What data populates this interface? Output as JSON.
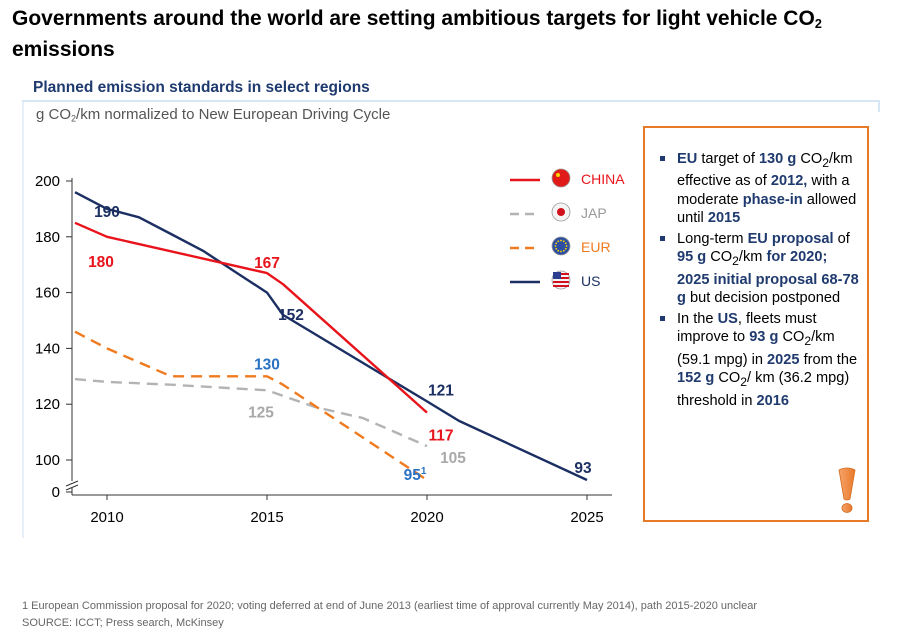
{
  "header": {
    "title_part1": "Governments around the world are setting ambitious targets for light vehicle CO",
    "title_sub": "2",
    "title_part2": " emissions",
    "subtitle": "Planned emission standards in select regions",
    "unit_part1": "g CO",
    "unit_sub": "2",
    "unit_part2": "/km normalized to New European Driving Cycle"
  },
  "chart_data": {
    "type": "line",
    "title": "Planned emission standards in select regions",
    "ylabel": "g CO2/km normalized to New European Driving Cycle",
    "xlabel": "",
    "x_ticks": [
      "2010",
      "2015",
      "2020",
      "2025"
    ],
    "y_ticks": [
      "0",
      "100",
      "120",
      "140",
      "160",
      "180",
      "200"
    ],
    "y_break": true,
    "xlim": [
      2009,
      2025.5
    ],
    "ylim": [
      95,
      200
    ],
    "legend_placement": "top-right",
    "series": [
      {
        "name": "CHINA",
        "color": "#e8141b",
        "dash": "solid",
        "flag": "china-flag-icon",
        "points": [
          [
            2009,
            185
          ],
          [
            2010,
            180
          ],
          [
            2015,
            167
          ],
          [
            2015.5,
            163
          ],
          [
            2020,
            117
          ]
        ],
        "labels": [
          {
            "text": "180",
            "x": 2010,
            "y": 180
          },
          {
            "text": "167",
            "x": 2015,
            "y": 167
          },
          {
            "text": "117",
            "x": 2020,
            "y": 117
          }
        ]
      },
      {
        "name": "JAP",
        "color": "#b3b3b3",
        "dash": "dashed",
        "flag": "japan-flag-icon",
        "points": [
          [
            2009,
            129
          ],
          [
            2010,
            128
          ],
          [
            2012,
            127
          ],
          [
            2015,
            125
          ],
          [
            2016.5,
            119
          ],
          [
            2018,
            115
          ],
          [
            2020,
            105
          ]
        ],
        "labels": [
          {
            "text": "125",
            "x": 2015,
            "y": 125
          },
          {
            "text": "105",
            "x": 2020,
            "y": 105
          }
        ]
      },
      {
        "name": "EUR",
        "color": "#f07a1e",
        "dash": "dashed",
        "flag": "eu-flag-icon",
        "points": [
          [
            2009,
            146
          ],
          [
            2010,
            140
          ],
          [
            2012,
            130
          ],
          [
            2015,
            130
          ],
          [
            2015.5,
            127
          ],
          [
            2020,
            95
          ]
        ],
        "labels": [
          {
            "text": "130",
            "x": 2015,
            "y": 130
          },
          {
            "text": "95",
            "x": 2020,
            "y": 95,
            "sup": "1"
          }
        ]
      },
      {
        "name": "US",
        "color": "#1b2f63",
        "dash": "solid",
        "flag": "us-flag-icon",
        "points": [
          [
            2009,
            196
          ],
          [
            2010,
            190
          ],
          [
            2011,
            187
          ],
          [
            2012,
            181
          ],
          [
            2013,
            175
          ],
          [
            2015,
            160
          ],
          [
            2015.5,
            152
          ],
          [
            2020,
            121
          ],
          [
            2021,
            114
          ],
          [
            2025,
            93
          ]
        ],
        "labels": [
          {
            "text": "190",
            "x": 2010,
            "y": 190
          },
          {
            "text": "152",
            "x": 2015.5,
            "y": 152
          },
          {
            "text": "121",
            "x": 2020,
            "y": 121
          },
          {
            "text": "93",
            "x": 2025,
            "y": 93
          }
        ]
      }
    ]
  },
  "callout": {
    "border_color": "#e8792a",
    "icon": "exclamation-icon",
    "bullets": [
      [
        {
          "t": "EU",
          "b": true
        },
        {
          "t": " target of "
        },
        {
          "t": "130 g",
          "b": true
        },
        {
          "t": " CO"
        },
        {
          "t": "2",
          "sub": true
        },
        {
          "t": "/km effective as of "
        },
        {
          "t": "2012,",
          "b": true
        },
        {
          "t": " with a moderate "
        },
        {
          "t": "phase-in",
          "b": true
        },
        {
          "t": " allowed until "
        },
        {
          "t": "2015",
          "b": true
        }
      ],
      [
        {
          "t": "Long-term "
        },
        {
          "t": "EU proposal",
          "b": true
        },
        {
          "t": " of "
        },
        {
          "t": "95 g",
          "b": true
        },
        {
          "t": " CO"
        },
        {
          "t": "2",
          "sub": true
        },
        {
          "t": "/km "
        },
        {
          "t": "for 2020;  2025 initial proposal 68-78 g",
          "b": true
        },
        {
          "t": " but decision postponed"
        }
      ],
      [
        {
          "t": "In the "
        },
        {
          "t": "US",
          "b": true
        },
        {
          "t": ", fleets must improve to "
        },
        {
          "t": "93 g",
          "b": true
        },
        {
          "t": " CO"
        },
        {
          "t": "2",
          "sub": true
        },
        {
          "t": "/km (59.1 mpg) in "
        },
        {
          "t": "2025",
          "b": true
        },
        {
          "t": " from the "
        },
        {
          "t": "152 g",
          "b": true
        },
        {
          "t": " CO"
        },
        {
          "t": "2",
          "sub": true
        },
        {
          "t": "/ km (36.2 mpg) threshold in "
        },
        {
          "t": "2016",
          "b": true
        }
      ]
    ]
  },
  "footer": {
    "footnote": "1 European Commission proposal for 2020; voting deferred at end of June 2013 (earliest time of approval currently May 2014), path 2015-2020 unclear",
    "source": "SOURCE: ICCT; Press search, McKinsey"
  }
}
